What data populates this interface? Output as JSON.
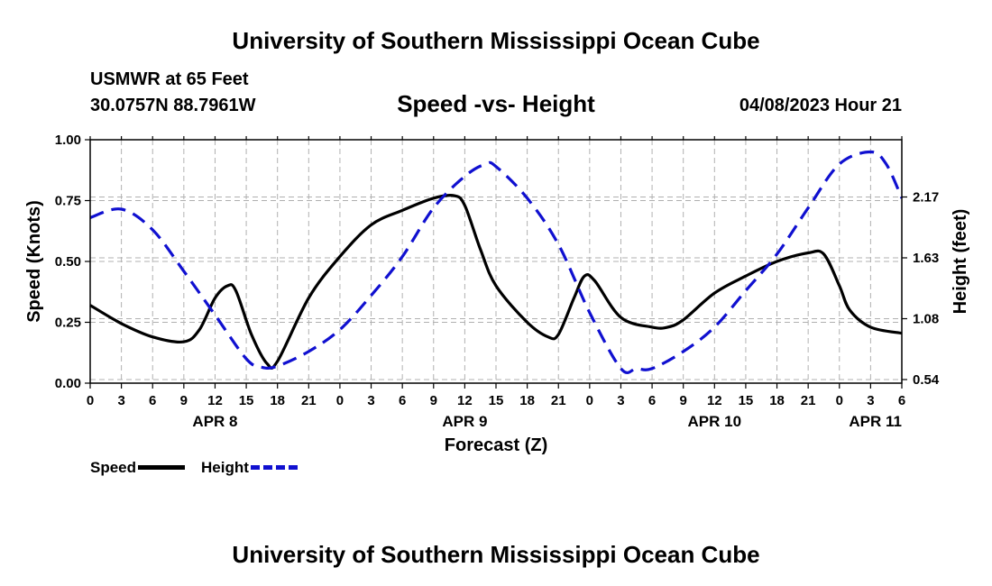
{
  "header": {
    "title": "University of Southern Mississippi Ocean Cube",
    "station": "USMWR at 65 Feet",
    "coords": "30.0757N  88.7961W",
    "subtitle": "Speed -vs- Height",
    "datetime": "04/08/2023 Hour 21"
  },
  "footer": {
    "title": "University of Southern Mississippi Ocean Cube"
  },
  "legend": {
    "speed_label": "Speed",
    "height_label": "Height"
  },
  "colors": {
    "speed": "#000000",
    "height": "#1010d0",
    "grid": "#b0b0b0"
  },
  "chart_data": {
    "type": "line",
    "title": "Speed -vs- Height",
    "xlabel": "Forecast (Z)",
    "ylabel": "Speed (Knots)",
    "y2label": "Height (feet)",
    "grid": true,
    "x_range_hours": [
      0,
      78
    ],
    "x_ticks": [
      {
        "h": 0,
        "label": "0"
      },
      {
        "h": 3,
        "label": "3"
      },
      {
        "h": 6,
        "label": "6"
      },
      {
        "h": 9,
        "label": "9"
      },
      {
        "h": 12,
        "label": "12"
      },
      {
        "h": 15,
        "label": "15"
      },
      {
        "h": 18,
        "label": "18"
      },
      {
        "h": 21,
        "label": "21"
      },
      {
        "h": 24,
        "label": "0"
      },
      {
        "h": 27,
        "label": "3"
      },
      {
        "h": 30,
        "label": "6"
      },
      {
        "h": 33,
        "label": "9"
      },
      {
        "h": 36,
        "label": "12"
      },
      {
        "h": 39,
        "label": "15"
      },
      {
        "h": 42,
        "label": "18"
      },
      {
        "h": 45,
        "label": "21"
      },
      {
        "h": 48,
        "label": "0"
      },
      {
        "h": 51,
        "label": "3"
      },
      {
        "h": 54,
        "label": "6"
      },
      {
        "h": 57,
        "label": "9"
      },
      {
        "h": 60,
        "label": "12"
      },
      {
        "h": 63,
        "label": "15"
      },
      {
        "h": 66,
        "label": "18"
      },
      {
        "h": 69,
        "label": "21"
      },
      {
        "h": 72,
        "label": "0"
      },
      {
        "h": 75,
        "label": "3"
      },
      {
        "h": 78,
        "label": "6"
      }
    ],
    "day_labels": [
      {
        "h": 12,
        "label": "APR 8"
      },
      {
        "h": 36,
        "label": "APR 9"
      },
      {
        "h": 60,
        "label": "APR 10"
      },
      {
        "h": 78,
        "label": "APR 11"
      }
    ],
    "ylim": [
      0,
      1
    ],
    "y_ticks": [
      "0.00",
      "0.25",
      "0.50",
      "0.75",
      "1.00"
    ],
    "y2_ticks": [
      {
        "speed_pos": 0.0,
        "label": "0.54"
      },
      {
        "speed_pos": 0.25,
        "label": "1.08"
      },
      {
        "speed_pos": 0.5,
        "label": "1.63"
      },
      {
        "speed_pos": 0.75,
        "label": "2.17"
      }
    ],
    "series": [
      {
        "name": "Speed",
        "axis": "left",
        "style": "solid",
        "points": [
          [
            0,
            0.32
          ],
          [
            3,
            0.245
          ],
          [
            6,
            0.19
          ],
          [
            9,
            0.17
          ],
          [
            10.5,
            0.22
          ],
          [
            12,
            0.35
          ],
          [
            13.2,
            0.4
          ],
          [
            14,
            0.38
          ],
          [
            15.5,
            0.2
          ],
          [
            17,
            0.08
          ],
          [
            18,
            0.09
          ],
          [
            21,
            0.35
          ],
          [
            24,
            0.52
          ],
          [
            27,
            0.65
          ],
          [
            30,
            0.71
          ],
          [
            33,
            0.76
          ],
          [
            35,
            0.77
          ],
          [
            36,
            0.73
          ],
          [
            37.5,
            0.55
          ],
          [
            39,
            0.4
          ],
          [
            42,
            0.25
          ],
          [
            44,
            0.19
          ],
          [
            45,
            0.2
          ],
          [
            46.5,
            0.35
          ],
          [
            47.5,
            0.44
          ],
          [
            48.5,
            0.42
          ],
          [
            51,
            0.27
          ],
          [
            54,
            0.23
          ],
          [
            55.5,
            0.23
          ],
          [
            57,
            0.26
          ],
          [
            60,
            0.37
          ],
          [
            63,
            0.44
          ],
          [
            66,
            0.5
          ],
          [
            69,
            0.535
          ],
          [
            70.5,
            0.53
          ],
          [
            72,
            0.4
          ],
          [
            73,
            0.3
          ],
          [
            75,
            0.23
          ],
          [
            78,
            0.205
          ]
        ]
      },
      {
        "name": "Height",
        "axis": "left_scaled",
        "style": "dashed",
        "points": [
          [
            0,
            0.68
          ],
          [
            3,
            0.715
          ],
          [
            6,
            0.63
          ],
          [
            9,
            0.46
          ],
          [
            12,
            0.28
          ],
          [
            15,
            0.1
          ],
          [
            16.5,
            0.065
          ],
          [
            18,
            0.07
          ],
          [
            21,
            0.13
          ],
          [
            24,
            0.22
          ],
          [
            27,
            0.36
          ],
          [
            30,
            0.52
          ],
          [
            33,
            0.72
          ],
          [
            36,
            0.85
          ],
          [
            38,
            0.9
          ],
          [
            39,
            0.89
          ],
          [
            42,
            0.76
          ],
          [
            45,
            0.57
          ],
          [
            48,
            0.29
          ],
          [
            51,
            0.06
          ],
          [
            52.5,
            0.06
          ],
          [
            54,
            0.06
          ],
          [
            57,
            0.13
          ],
          [
            60,
            0.23
          ],
          [
            63,
            0.38
          ],
          [
            66,
            0.53
          ],
          [
            69,
            0.72
          ],
          [
            72,
            0.9
          ],
          [
            75,
            0.95
          ],
          [
            76.5,
            0.9
          ],
          [
            78,
            0.76
          ]
        ]
      }
    ]
  }
}
